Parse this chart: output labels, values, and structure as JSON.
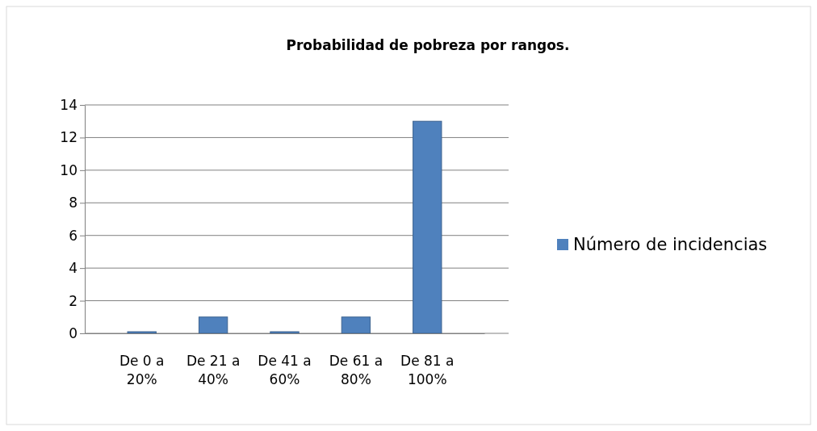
{
  "chart_data": {
    "type": "bar",
    "title": "Probabilidad de pobreza por rangos.",
    "categories": [
      "De 0 a 20%",
      "De 21 a 40%",
      "De 41 a 60%",
      "De 61 a 80%",
      "De 81 a 100%"
    ],
    "series": [
      {
        "name": "Número de incidencias",
        "color": "#4f81bd",
        "values": [
          0,
          1,
          0,
          1,
          13
        ]
      }
    ],
    "ylim": [
      0,
      14
    ],
    "yticks": [
      0,
      2,
      4,
      6,
      8,
      10,
      12,
      14
    ],
    "grid": "y",
    "legend": "right"
  }
}
